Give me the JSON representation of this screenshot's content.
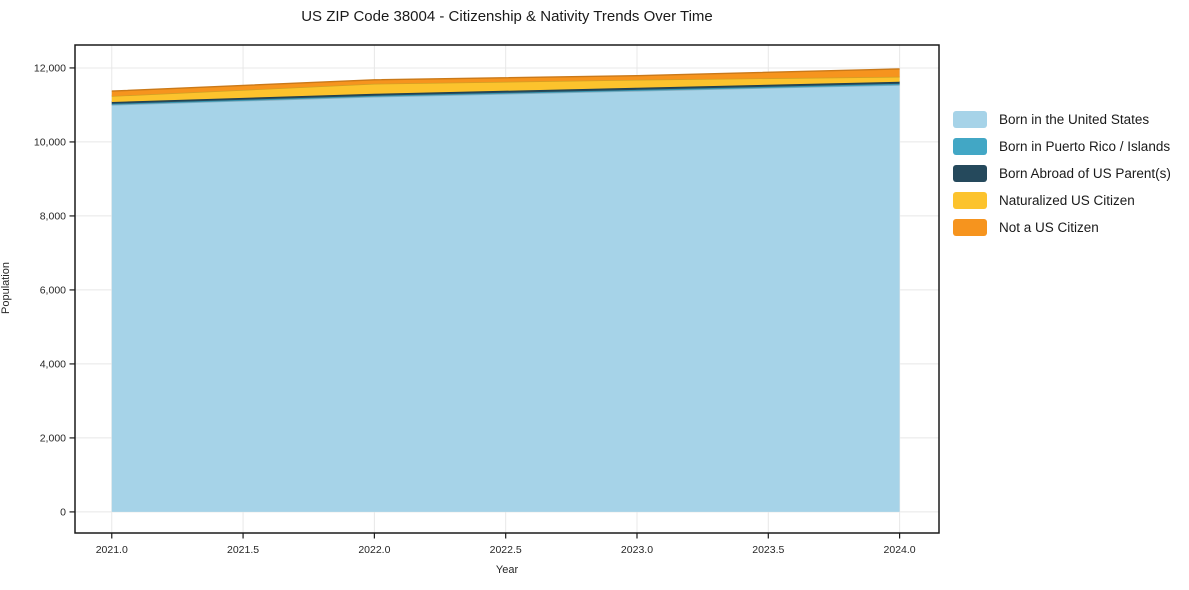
{
  "chart_data": {
    "type": "area",
    "stacked": true,
    "title": "US ZIP Code 38004 - Citizenship & Nativity Trends Over Time",
    "xlabel": "Year",
    "ylabel": "Population",
    "x": [
      2021,
      2022,
      2023,
      2024
    ],
    "series": [
      {
        "name": "Born in the United States",
        "color": "#a6d3e8",
        "values": [
          11000,
          11220,
          11380,
          11540
        ]
      },
      {
        "name": "Born in Puerto Rico / Islands",
        "color": "#42a7c5",
        "values": [
          30,
          30,
          30,
          35
        ]
      },
      {
        "name": "Born Abroad of US Parent(s)",
        "color": "#25495c",
        "values": [
          50,
          50,
          55,
          50
        ]
      },
      {
        "name": "Naturalized US Citizen",
        "color": "#fcc32d",
        "values": [
          160,
          270,
          215,
          135
        ]
      },
      {
        "name": "Not a US Citizen",
        "color": "#f6941e",
        "values": [
          135,
          110,
          110,
          215
        ]
      }
    ],
    "xticks": [
      2021.0,
      2021.5,
      2022.0,
      2022.5,
      2023.0,
      2023.5,
      2024.0
    ],
    "yticks": [
      0,
      2000,
      4000,
      6000,
      8000,
      10000,
      12000
    ],
    "xlim": [
      2020.86,
      2024.15
    ],
    "ylim": [
      -570,
      12620
    ],
    "grid": true,
    "grid_color": "#e8e8e8",
    "spine_color": "#1a1a1a",
    "tick_label_color": "#262626",
    "legend_position": "right"
  }
}
